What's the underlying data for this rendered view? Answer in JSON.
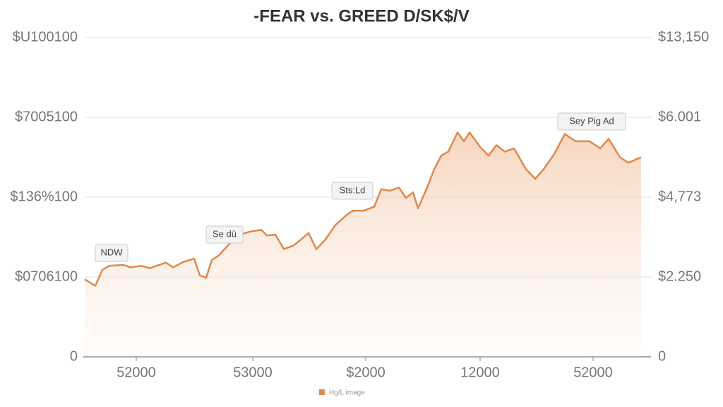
{
  "chart_data": {
    "type": "area",
    "title": "-FEAR vs. GREED D/SK$/V",
    "x": [
      0,
      15,
      25,
      35,
      55,
      65,
      80,
      92,
      105,
      115,
      125,
      140,
      155,
      163,
      172,
      180,
      190,
      200,
      210,
      220,
      235,
      250,
      258,
      270,
      282,
      295,
      305,
      317,
      328,
      340,
      355,
      370,
      380,
      395,
      410,
      420,
      432,
      445,
      455,
      465,
      472,
      485,
      495,
      505,
      515,
      528,
      537,
      545,
      560,
      572,
      583,
      595,
      608,
      625,
      638,
      650,
      665,
      680,
      695,
      715,
      730,
      742,
      758,
      770,
      788
    ],
    "series": [
      {
        "name": "Hg/L image",
        "color": "#e0894a",
        "values": [
          0.97,
          0.89,
          1.09,
          1.14,
          1.15,
          1.12,
          1.14,
          1.11,
          1.15,
          1.18,
          1.12,
          1.19,
          1.23,
          1.02,
          0.99,
          1.21,
          1.27,
          1.37,
          1.46,
          1.53,
          1.57,
          1.59,
          1.52,
          1.53,
          1.35,
          1.39,
          1.46,
          1.55,
          1.35,
          1.46,
          1.65,
          1.77,
          1.83,
          1.83,
          1.88,
          2.1,
          2.08,
          2.12,
          1.99,
          2.06,
          1.86,
          2.12,
          2.35,
          2.52,
          2.57,
          2.81,
          2.7,
          2.81,
          2.63,
          2.52,
          2.65,
          2.57,
          2.61,
          2.35,
          2.23,
          2.35,
          2.54,
          2.79,
          2.7,
          2.7,
          2.61,
          2.73,
          2.5,
          2.43,
          2.5
        ]
      }
    ],
    "xlim": [
      0,
      800
    ],
    "xticks": [
      {
        "value": 73,
        "label": "52000"
      },
      {
        "value": 238,
        "label": "53000"
      },
      {
        "value": 398,
        "label": "$2000"
      },
      {
        "value": 560,
        "label": "12000"
      },
      {
        "value": 720,
        "label": "52000"
      }
    ],
    "ylim": [
      0,
      4
    ],
    "yticks": [
      0,
      {
        "value": 1,
        "label": "$0706100"
      },
      {
        "value": 2,
        "label": "$136%100"
      },
      {
        "value": 3,
        "label": "$7005100"
      },
      {
        "value": 4,
        "label": "$U100100"
      }
    ],
    "y2lim": [
      0,
      4
    ],
    "y2ticks": [
      0,
      {
        "value": 1,
        "label": "$2.250"
      },
      {
        "value": 2,
        "label": "$4,773"
      },
      {
        "value": 3,
        "label": "$6.001"
      },
      {
        "value": 4,
        "label": "$13,150"
      }
    ],
    "grid": true,
    "annotations": [
      "NDW",
      "Se dü",
      "Sts:Ld",
      "Sey Pig Ad"
    ]
  }
}
